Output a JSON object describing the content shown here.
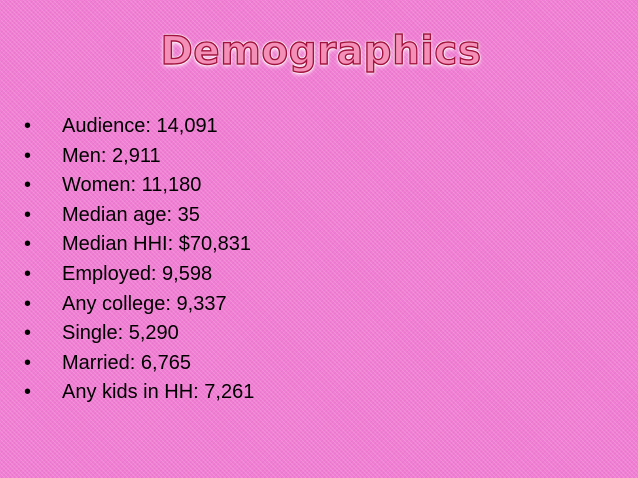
{
  "slide": {
    "title": "Demographics",
    "background_color": "#f07ed3",
    "title_fill_color": "#f48fb8",
    "title_outline_color": "#a2123e",
    "bullet_glyph": "•",
    "bullets": [
      "Audience: 14,091",
      "Men: 2,911",
      "Women: 11,180",
      "Median age: 35",
      "Median HHI: $70,831",
      "Employed: 9,598",
      "Any college: 9,337",
      "Single: 5,290",
      "Married: 6,765",
      "Any kids in HH: 7,261"
    ]
  }
}
